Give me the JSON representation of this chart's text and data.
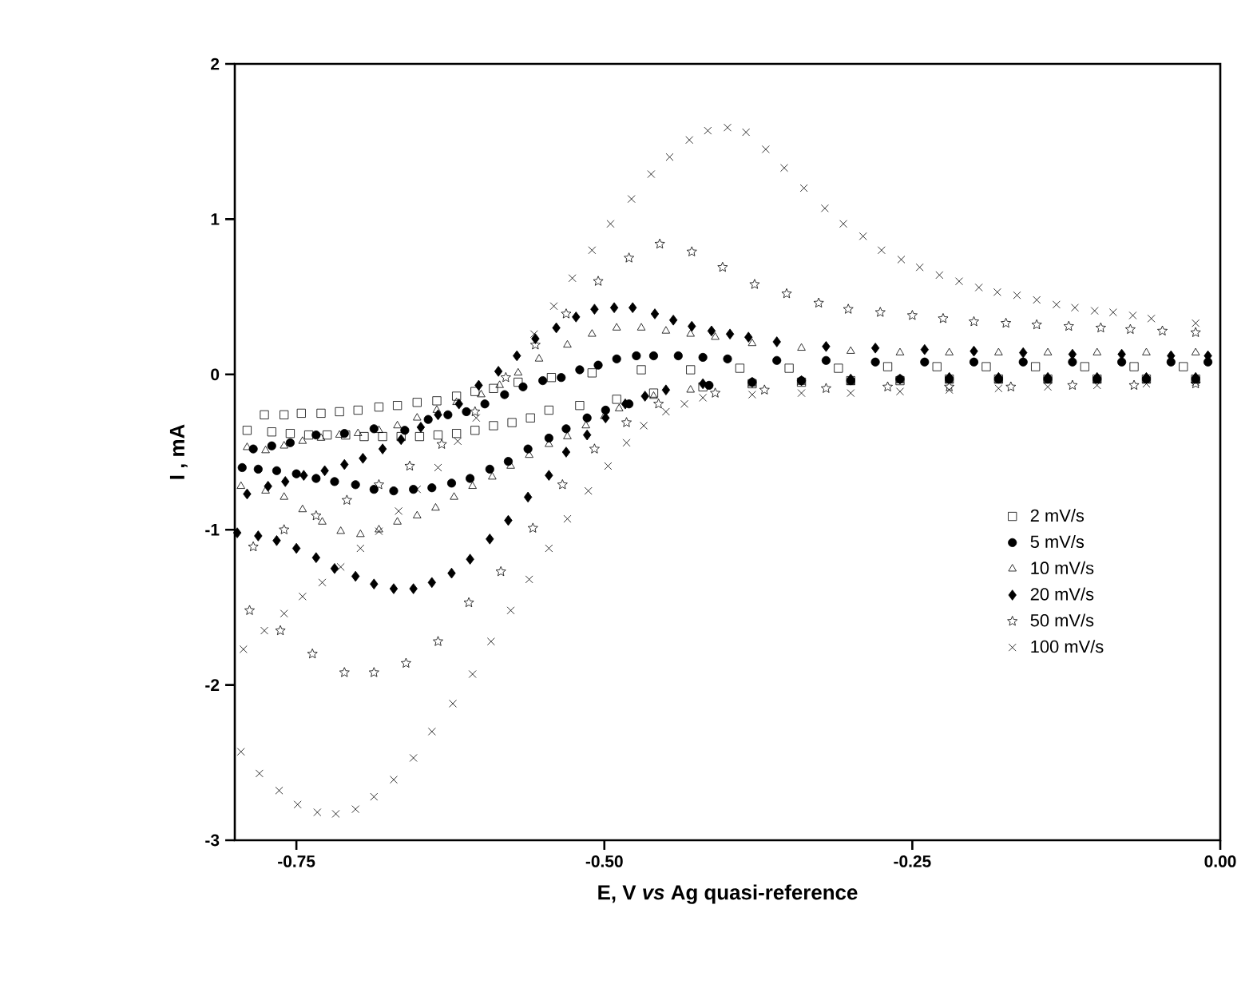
{
  "chart_data": {
    "type": "scatter",
    "xlabel": "E, V *vs* Ag quasi-reference",
    "ylabel": "I , mA",
    "xlim": [
      -0.8,
      0.0
    ],
    "ylim": [
      -3,
      2
    ],
    "xticks": [
      -0.75,
      {
        "value": -0.5,
        "label": "-0.50"
      },
      -0.25,
      {
        "value": 0.0,
        "label": "0.00"
      }
    ],
    "yticks": [
      -3,
      -2,
      -1,
      0,
      1,
      2
    ],
    "grid": false,
    "legend": "bottom right",
    "series": [
      {
        "name": "2 mV/s",
        "color": "#000000",
        "marker": "square",
        "x": [
          -0.02,
          -0.06,
          -0.1,
          -0.14,
          -0.18,
          -0.22,
          -0.26,
          -0.3,
          -0.34,
          -0.38,
          -0.42,
          -0.46,
          -0.49,
          -0.52,
          -0.545,
          -0.56,
          -0.575,
          -0.59,
          -0.605,
          -0.62,
          -0.635,
          -0.65,
          -0.665,
          -0.68,
          -0.695,
          -0.71,
          -0.725,
          -0.74,
          -0.755,
          -0.77,
          -0.79,
          -0.776,
          -0.76,
          -0.746,
          -0.73,
          -0.715,
          -0.7,
          -0.683,
          -0.668,
          -0.652,
          -0.636,
          -0.62,
          -0.605,
          -0.59,
          -0.57,
          -0.543,
          -0.51,
          -0.47,
          -0.43,
          -0.39,
          -0.35,
          -0.31,
          -0.27,
          -0.23,
          -0.19,
          -0.15,
          -0.11,
          -0.07,
          -0.03
        ],
        "values": [
          -0.03,
          -0.03,
          -0.03,
          -0.03,
          -0.03,
          -0.03,
          -0.04,
          -0.04,
          -0.05,
          -0.06,
          -0.08,
          -0.12,
          -0.16,
          -0.2,
          -0.23,
          -0.28,
          -0.31,
          -0.33,
          -0.36,
          -0.38,
          -0.39,
          -0.4,
          -0.4,
          -0.4,
          -0.4,
          -0.39,
          -0.39,
          -0.39,
          -0.38,
          -0.37,
          -0.36,
          -0.26,
          -0.26,
          -0.25,
          -0.25,
          -0.24,
          -0.23,
          -0.21,
          -0.2,
          -0.18,
          -0.17,
          -0.14,
          -0.11,
          -0.09,
          -0.05,
          -0.02,
          0.01,
          0.03,
          0.03,
          0.04,
          0.04,
          0.04,
          0.05,
          0.05,
          0.05,
          0.05,
          0.05,
          0.05,
          0.05
        ]
      },
      {
        "name": "5 mV/s",
        "color": "#000000",
        "marker": "circle",
        "x": [
          -0.02,
          -0.06,
          -0.1,
          -0.14,
          -0.18,
          -0.22,
          -0.26,
          -0.3,
          -0.34,
          -0.38,
          -0.415,
          -0.48,
          -0.499,
          -0.514,
          -0.531,
          -0.545,
          -0.562,
          -0.578,
          -0.593,
          -0.609,
          -0.624,
          -0.64,
          -0.655,
          -0.671,
          -0.687,
          -0.702,
          -0.719,
          -0.734,
          -0.75,
          -0.766,
          -0.781,
          -0.794,
          -0.785,
          -0.77,
          -0.755,
          -0.734,
          -0.711,
          -0.687,
          -0.662,
          -0.643,
          -0.627,
          -0.612,
          -0.597,
          -0.581,
          -0.566,
          -0.55,
          -0.535,
          -0.52,
          -0.505,
          -0.49,
          -0.474,
          -0.46,
          -0.44,
          -0.42,
          -0.4,
          -0.36,
          -0.32,
          -0.28,
          -0.24,
          -0.2,
          -0.16,
          -0.12,
          -0.08,
          -0.04,
          -0.01
        ],
        "values": [
          -0.03,
          -0.03,
          -0.03,
          -0.03,
          -0.03,
          -0.03,
          -0.03,
          -0.04,
          -0.04,
          -0.05,
          -0.07,
          -0.19,
          -0.23,
          -0.28,
          -0.35,
          -0.41,
          -0.48,
          -0.56,
          -0.61,
          -0.67,
          -0.7,
          -0.73,
          -0.74,
          -0.75,
          -0.74,
          -0.71,
          -0.69,
          -0.67,
          -0.64,
          -0.62,
          -0.61,
          -0.6,
          -0.48,
          -0.46,
          -0.44,
          -0.39,
          -0.38,
          -0.35,
          -0.36,
          -0.29,
          -0.26,
          -0.24,
          -0.19,
          -0.13,
          -0.08,
          -0.04,
          -0.02,
          0.03,
          0.06,
          0.1,
          0.12,
          0.12,
          0.12,
          0.11,
          0.1,
          0.09,
          0.09,
          0.08,
          0.08,
          0.08,
          0.08,
          0.08,
          0.08,
          0.08,
          0.08
        ]
      },
      {
        "name": "10 mV/s",
        "color": "#000000",
        "marker": "triangle",
        "x": [
          -0.02,
          -0.06,
          -0.1,
          -0.14,
          -0.18,
          -0.22,
          -0.26,
          -0.3,
          -0.34,
          -0.38,
          -0.43,
          -0.46,
          -0.488,
          -0.5,
          -0.515,
          -0.53,
          -0.545,
          -0.561,
          -0.576,
          -0.591,
          -0.607,
          -0.622,
          -0.637,
          -0.652,
          -0.668,
          -0.683,
          -0.698,
          -0.714,
          -0.729,
          -0.745,
          -0.76,
          -0.775,
          -0.795,
          -0.79,
          -0.775,
          -0.76,
          -0.745,
          -0.73,
          -0.715,
          -0.7,
          -0.683,
          -0.668,
          -0.652,
          -0.636,
          -0.62,
          -0.6,
          -0.585,
          -0.57,
          -0.553,
          -0.53,
          -0.51,
          -0.49,
          -0.47,
          -0.45,
          -0.43,
          -0.41,
          -0.38,
          -0.34,
          -0.3,
          -0.26,
          -0.22,
          -0.18,
          -0.14,
          -0.1,
          -0.06,
          -0.02
        ],
        "values": [
          -0.04,
          -0.04,
          -0.04,
          -0.04,
          -0.04,
          -0.04,
          -0.04,
          -0.05,
          -0.05,
          -0.06,
          -0.1,
          -0.14,
          -0.22,
          -0.27,
          -0.33,
          -0.4,
          -0.45,
          -0.52,
          -0.59,
          -0.66,
          -0.72,
          -0.79,
          -0.86,
          -0.91,
          -0.95,
          -1.0,
          -1.03,
          -1.01,
          -0.95,
          -0.87,
          -0.79,
          -0.75,
          -0.72,
          -0.47,
          -0.49,
          -0.46,
          -0.43,
          -0.41,
          -0.39,
          -0.38,
          -0.36,
          -0.33,
          -0.28,
          -0.23,
          -0.18,
          -0.13,
          -0.07,
          0.01,
          0.1,
          0.19,
          0.26,
          0.3,
          0.3,
          0.28,
          0.26,
          0.24,
          0.2,
          0.17,
          0.15,
          0.14,
          0.14,
          0.14,
          0.14,
          0.14,
          0.14,
          0.14
        ]
      },
      {
        "name": "20 mV/s",
        "color": "#000000",
        "marker": "diamond",
        "x": [
          -0.02,
          -0.06,
          -0.1,
          -0.14,
          -0.18,
          -0.22,
          -0.26,
          -0.3,
          -0.34,
          -0.38,
          -0.42,
          -0.45,
          -0.467,
          -0.483,
          -0.499,
          -0.514,
          -0.531,
          -0.545,
          -0.562,
          -0.578,
          -0.593,
          -0.609,
          -0.624,
          -0.64,
          -0.655,
          -0.671,
          -0.687,
          -0.702,
          -0.719,
          -0.734,
          -0.75,
          -0.766,
          -0.781,
          -0.798,
          -0.79,
          -0.773,
          -0.759,
          -0.744,
          -0.727,
          -0.711,
          -0.696,
          -0.68,
          -0.665,
          -0.649,
          -0.635,
          -0.618,
          -0.602,
          -0.586,
          -0.571,
          -0.556,
          -0.539,
          -0.523,
          -0.508,
          -0.492,
          -0.477,
          -0.459,
          -0.444,
          -0.429,
          -0.413,
          -0.398,
          -0.383,
          -0.36,
          -0.32,
          -0.28,
          -0.24,
          -0.2,
          -0.16,
          -0.12,
          -0.08,
          -0.04,
          -0.01
        ],
        "values": [
          -0.02,
          -0.02,
          -0.02,
          -0.02,
          -0.02,
          -0.02,
          -0.03,
          -0.03,
          -0.04,
          -0.05,
          -0.06,
          -0.1,
          -0.14,
          -0.19,
          -0.28,
          -0.39,
          -0.5,
          -0.65,
          -0.79,
          -0.94,
          -1.06,
          -1.19,
          -1.28,
          -1.34,
          -1.38,
          -1.38,
          -1.35,
          -1.3,
          -1.25,
          -1.18,
          -1.12,
          -1.07,
          -1.04,
          -1.02,
          -0.77,
          -0.72,
          -0.69,
          -0.65,
          -0.62,
          -0.58,
          -0.54,
          -0.48,
          -0.42,
          -0.34,
          -0.26,
          -0.19,
          -0.07,
          0.02,
          0.12,
          0.23,
          0.3,
          0.37,
          0.42,
          0.43,
          0.43,
          0.39,
          0.35,
          0.31,
          0.28,
          0.26,
          0.24,
          0.21,
          0.18,
          0.17,
          0.16,
          0.15,
          0.14,
          0.13,
          0.13,
          0.12,
          0.12
        ]
      },
      {
        "name": "50 mV/s",
        "color": "#000000",
        "marker": "star",
        "x": [
          -0.02,
          -0.07,
          -0.12,
          -0.17,
          -0.22,
          -0.27,
          -0.32,
          -0.37,
          -0.41,
          -0.456,
          -0.482,
          -0.508,
          -0.534,
          -0.558,
          -0.584,
          -0.61,
          -0.635,
          -0.661,
          -0.687,
          -0.711,
          -0.737,
          -0.763,
          -0.788,
          -0.785,
          -0.76,
          -0.734,
          -0.709,
          -0.683,
          -0.658,
          -0.632,
          -0.605,
          -0.58,
          -0.556,
          -0.531,
          -0.505,
          -0.48,
          -0.455,
          -0.429,
          -0.404,
          -0.378,
          -0.352,
          -0.326,
          -0.302,
          -0.276,
          -0.25,
          -0.225,
          -0.2,
          -0.174,
          -0.149,
          -0.123,
          -0.097,
          -0.073,
          -0.047,
          -0.02
        ],
        "values": [
          -0.06,
          -0.07,
          -0.07,
          -0.08,
          -0.08,
          -0.08,
          -0.09,
          -0.1,
          -0.12,
          -0.19,
          -0.31,
          -0.48,
          -0.71,
          -0.99,
          -1.27,
          -1.47,
          -1.72,
          -1.86,
          -1.92,
          -1.92,
          -1.8,
          -1.65,
          -1.52,
          -1.11,
          -1.0,
          -0.91,
          -0.81,
          -0.71,
          -0.59,
          -0.45,
          -0.24,
          -0.02,
          0.19,
          0.39,
          0.6,
          0.75,
          0.84,
          0.79,
          0.69,
          0.58,
          0.52,
          0.46,
          0.42,
          0.4,
          0.38,
          0.36,
          0.34,
          0.33,
          0.32,
          0.31,
          0.3,
          0.29,
          0.28,
          0.27
        ]
      },
      {
        "name": "100 mV/s",
        "color": "#000000",
        "marker": "cross",
        "x": [
          -0.02,
          -0.06,
          -0.1,
          -0.14,
          -0.18,
          -0.22,
          -0.26,
          -0.3,
          -0.34,
          -0.38,
          -0.42,
          -0.435,
          -0.45,
          -0.468,
          -0.482,
          -0.497,
          -0.513,
          -0.53,
          -0.545,
          -0.561,
          -0.576,
          -0.592,
          -0.607,
          -0.623,
          -0.64,
          -0.655,
          -0.671,
          -0.687,
          -0.702,
          -0.718,
          -0.733,
          -0.749,
          -0.764,
          -0.78,
          -0.795,
          -0.793,
          -0.776,
          -0.76,
          -0.745,
          -0.729,
          -0.714,
          -0.698,
          -0.683,
          -0.667,
          -0.652,
          -0.635,
          -0.619,
          -0.604,
          -0.557,
          -0.541,
          -0.526,
          -0.51,
          -0.495,
          -0.478,
          -0.462,
          -0.447,
          -0.431,
          -0.416,
          -0.4,
          -0.385,
          -0.369,
          -0.354,
          -0.338,
          -0.321,
          -0.306,
          -0.29,
          -0.275,
          -0.259,
          -0.244,
          -0.228,
          -0.212,
          -0.196,
          -0.181,
          -0.165,
          -0.149,
          -0.133,
          -0.118,
          -0.102,
          -0.087,
          -0.071,
          -0.056,
          -0.02
        ],
        "values": [
          -0.05,
          -0.06,
          -0.07,
          -0.08,
          -0.09,
          -0.1,
          -0.11,
          -0.12,
          -0.12,
          -0.13,
          -0.15,
          -0.19,
          -0.24,
          -0.33,
          -0.44,
          -0.59,
          -0.75,
          -0.93,
          -1.12,
          -1.32,
          -1.52,
          -1.72,
          -1.93,
          -2.12,
          -2.3,
          -2.47,
          -2.61,
          -2.72,
          -2.8,
          -2.83,
          -2.82,
          -2.77,
          -2.68,
          -2.57,
          -2.43,
          -1.77,
          -1.65,
          -1.54,
          -1.43,
          -1.34,
          -1.24,
          -1.12,
          -1.01,
          -0.88,
          -0.74,
          -0.6,
          -0.43,
          -0.28,
          0.26,
          0.44,
          0.62,
          0.8,
          0.97,
          1.13,
          1.29,
          1.4,
          1.51,
          1.57,
          1.59,
          1.56,
          1.45,
          1.33,
          1.2,
          1.07,
          0.97,
          0.89,
          0.8,
          0.74,
          0.69,
          0.64,
          0.6,
          0.56,
          0.53,
          0.51,
          0.48,
          0.45,
          0.43,
          0.41,
          0.4,
          0.38,
          0.36,
          0.33
        ]
      }
    ]
  }
}
